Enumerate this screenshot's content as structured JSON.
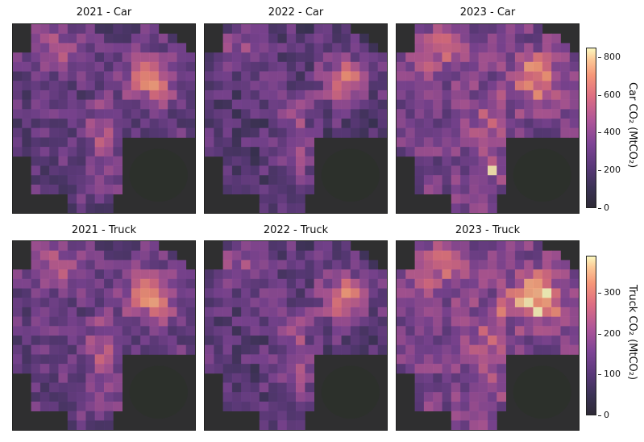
{
  "chart_data": {
    "type": "heatmap",
    "grid": {
      "rows": 20,
      "cols": 20
    },
    "panels": [
      {
        "title": "2021 - Car",
        "metric": "car",
        "year": "2021"
      },
      {
        "title": "2022 - Car",
        "metric": "car",
        "year": "2022"
      },
      {
        "title": "2023 - Car",
        "metric": "car",
        "year": "2023"
      },
      {
        "title": "2021 - Truck",
        "metric": "truck",
        "year": "2021"
      },
      {
        "title": "2022 - Truck",
        "metric": "truck",
        "year": "2022"
      },
      {
        "title": "2023 - Truck",
        "metric": "truck",
        "year": "2023"
      }
    ],
    "colorbars": [
      {
        "metric": "car",
        "label": "Car CO₂ (MtCO₂)",
        "range": [
          0,
          850
        ],
        "ticks": [
          "0",
          "200",
          "400",
          "600",
          "800"
        ],
        "tick_values": [
          0,
          200,
          400,
          600,
          800
        ]
      },
      {
        "metric": "truck",
        "label": "Truck CO₂ (MtCO₂)",
        "range": [
          0,
          390
        ],
        "ticks": [
          "0",
          "100",
          "200",
          "300"
        ],
        "tick_values": [
          0,
          100,
          200,
          300
        ]
      }
    ],
    "colormap": "magma",
    "grid_visible": false
  }
}
